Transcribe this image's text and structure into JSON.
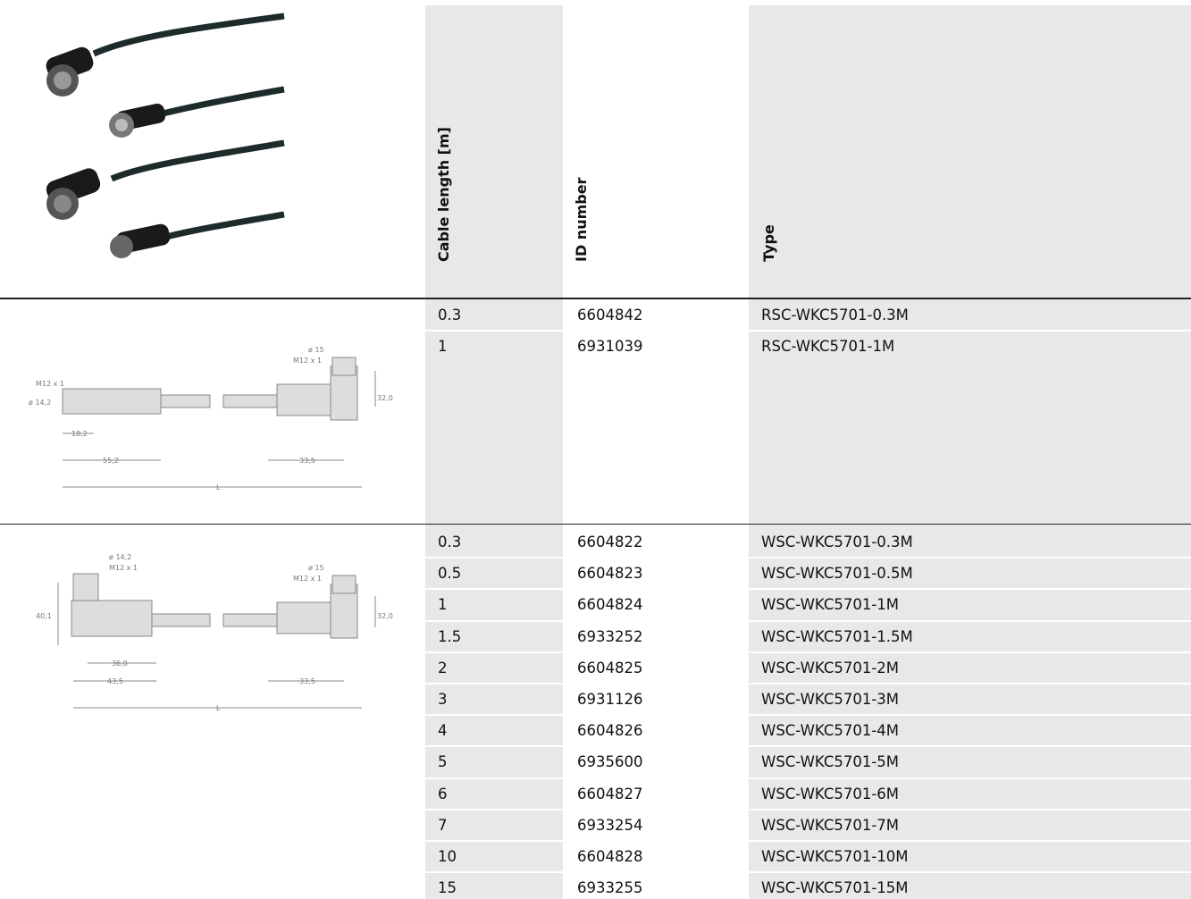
{
  "header": {
    "columns": [
      "Cable length [m]",
      "ID number",
      "Type"
    ]
  },
  "sections": [
    {
      "drawing_labels": [
        "M12 x 1",
        "ø 14,2",
        "18,2",
        "55,2",
        "ø 15",
        "M12 x 1",
        "32,0",
        "33,5",
        "L"
      ],
      "rows": [
        [
          "0.3",
          "6604842",
          "RSC-WKC5701-0.3M"
        ],
        [
          "1",
          "6931039",
          "RSC-WKC5701-1M"
        ]
      ]
    },
    {
      "drawing_labels": [
        "ø 14,2",
        "M12 x 1",
        "40,1",
        "36,0",
        "43,5",
        "ø 15",
        "M12 x 1",
        "32,0",
        "33,5",
        "L"
      ],
      "rows": [
        [
          "0.3",
          "6604822",
          "WSC-WKC5701-0.3M"
        ],
        [
          "0.5",
          "6604823",
          "WSC-WKC5701-0.5M"
        ],
        [
          "1",
          "6604824",
          "WSC-WKC5701-1M"
        ],
        [
          "1.5",
          "6933252",
          "WSC-WKC5701-1.5M"
        ],
        [
          "2",
          "6604825",
          "WSC-WKC5701-2M"
        ],
        [
          "3",
          "6931126",
          "WSC-WKC5701-3M"
        ],
        [
          "4",
          "6604826",
          "WSC-WKC5701-4M"
        ],
        [
          "5",
          "6935600",
          "WSC-WKC5701-5M"
        ],
        [
          "6",
          "6604827",
          "WSC-WKC5701-6M"
        ],
        [
          "7",
          "6933254",
          "WSC-WKC5701-7M"
        ],
        [
          "10",
          "6604828",
          "WSC-WKC5701-10M"
        ],
        [
          "15",
          "6933255",
          "WSC-WKC5701-15M"
        ]
      ]
    }
  ]
}
